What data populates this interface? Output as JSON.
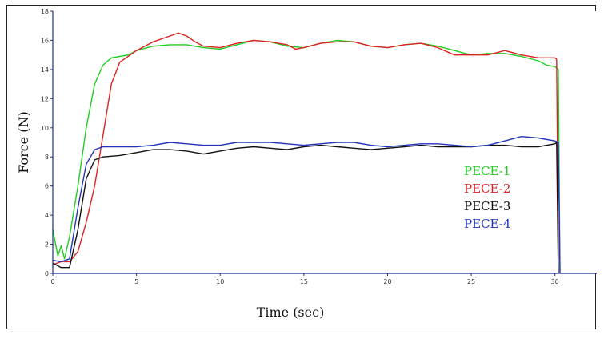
{
  "chart_data": {
    "type": "line",
    "xlabel": "Time (sec)",
    "ylabel": "Force (N)",
    "xlim": [
      0,
      32.5
    ],
    "ylim": [
      0,
      18
    ],
    "x_ticks": [
      "0",
      "5",
      "10",
      "15",
      "20",
      "25",
      "30"
    ],
    "y_ticks": [
      "0",
      "2",
      "4",
      "6",
      "8",
      "10",
      "12",
      "14",
      "16",
      "18"
    ],
    "grid": false,
    "legend_position": "right, inside plot",
    "series": [
      {
        "name": "PECE-1",
        "color": "#22cc22",
        "points": [
          [
            0,
            3.0
          ],
          [
            0.3,
            1.2
          ],
          [
            0.5,
            1.9
          ],
          [
            0.7,
            1.0
          ],
          [
            1.0,
            2.5
          ],
          [
            1.5,
            6.0
          ],
          [
            2.0,
            10.0
          ],
          [
            2.5,
            13.0
          ],
          [
            3.0,
            14.3
          ],
          [
            3.5,
            14.8
          ],
          [
            4.0,
            14.9
          ],
          [
            4.5,
            15.0
          ],
          [
            5.0,
            15.3
          ],
          [
            6.0,
            15.6
          ],
          [
            7.0,
            15.7
          ],
          [
            8.0,
            15.7
          ],
          [
            9.0,
            15.5
          ],
          [
            10.0,
            15.4
          ],
          [
            11.0,
            15.7
          ],
          [
            12.0,
            16.0
          ],
          [
            13.0,
            15.9
          ],
          [
            14.0,
            15.6
          ],
          [
            15.0,
            15.5
          ],
          [
            16.0,
            15.8
          ],
          [
            17.0,
            16.0
          ],
          [
            18.0,
            15.9
          ],
          [
            19.0,
            15.6
          ],
          [
            20.0,
            15.5
          ],
          [
            21.0,
            15.7
          ],
          [
            22.0,
            15.8
          ],
          [
            23.0,
            15.6
          ],
          [
            24.0,
            15.3
          ],
          [
            25.0,
            15.0
          ],
          [
            26.0,
            15.1
          ],
          [
            27.0,
            15.1
          ],
          [
            28.0,
            14.9
          ],
          [
            29.0,
            14.6
          ],
          [
            29.5,
            14.3
          ],
          [
            30.0,
            14.2
          ],
          [
            30.2,
            14.0
          ],
          [
            30.3,
            0
          ]
        ]
      },
      {
        "name": "PECE-2",
        "color": "#dd2222",
        "points": [
          [
            0,
            0.6
          ],
          [
            0.5,
            0.8
          ],
          [
            1.0,
            0.8
          ],
          [
            1.5,
            1.5
          ],
          [
            2.0,
            3.5
          ],
          [
            2.5,
            6.0
          ],
          [
            3.0,
            9.5
          ],
          [
            3.5,
            13.0
          ],
          [
            4.0,
            14.5
          ],
          [
            5.0,
            15.3
          ],
          [
            6.0,
            15.9
          ],
          [
            7.0,
            16.3
          ],
          [
            7.5,
            16.5
          ],
          [
            8.0,
            16.3
          ],
          [
            8.5,
            15.9
          ],
          [
            9.0,
            15.6
          ],
          [
            10.0,
            15.5
          ],
          [
            11.0,
            15.8
          ],
          [
            12.0,
            16.0
          ],
          [
            13.0,
            15.9
          ],
          [
            14.0,
            15.7
          ],
          [
            14.5,
            15.4
          ],
          [
            15.0,
            15.5
          ],
          [
            16.0,
            15.8
          ],
          [
            17.0,
            15.9
          ],
          [
            18.0,
            15.9
          ],
          [
            19.0,
            15.6
          ],
          [
            20.0,
            15.5
          ],
          [
            21.0,
            15.7
          ],
          [
            22.0,
            15.8
          ],
          [
            23.0,
            15.5
          ],
          [
            24.0,
            15.0
          ],
          [
            25.0,
            15.0
          ],
          [
            26.0,
            15.0
          ],
          [
            27.0,
            15.3
          ],
          [
            28.0,
            15.0
          ],
          [
            29.0,
            14.8
          ],
          [
            30.0,
            14.8
          ],
          [
            30.1,
            14.7
          ],
          [
            30.2,
            1.0
          ]
        ]
      },
      {
        "name": "PECE-3",
        "color": "#111111",
        "points": [
          [
            0,
            0.7
          ],
          [
            0.5,
            0.4
          ],
          [
            1.0,
            0.4
          ],
          [
            1.5,
            3.0
          ],
          [
            2.0,
            6.5
          ],
          [
            2.5,
            7.8
          ],
          [
            3.0,
            8.0
          ],
          [
            4.0,
            8.1
          ],
          [
            5.0,
            8.3
          ],
          [
            6.0,
            8.5
          ],
          [
            7.0,
            8.5
          ],
          [
            8.0,
            8.4
          ],
          [
            9.0,
            8.2
          ],
          [
            10.0,
            8.4
          ],
          [
            11.0,
            8.6
          ],
          [
            12.0,
            8.7
          ],
          [
            13.0,
            8.6
          ],
          [
            14.0,
            8.5
          ],
          [
            15.0,
            8.7
          ],
          [
            16.0,
            8.8
          ],
          [
            17.0,
            8.7
          ],
          [
            18.0,
            8.6
          ],
          [
            19.0,
            8.5
          ],
          [
            20.0,
            8.6
          ],
          [
            21.0,
            8.7
          ],
          [
            22.0,
            8.8
          ],
          [
            23.0,
            8.7
          ],
          [
            24.0,
            8.7
          ],
          [
            25.0,
            8.7
          ],
          [
            26.0,
            8.8
          ],
          [
            27.0,
            8.8
          ],
          [
            28.0,
            8.7
          ],
          [
            29.0,
            8.7
          ],
          [
            30.0,
            8.9
          ],
          [
            30.1,
            9.0
          ],
          [
            30.2,
            0
          ]
        ]
      },
      {
        "name": "PECE-4",
        "color": "#2233bb",
        "points": [
          [
            0,
            0.9
          ],
          [
            0.5,
            0.8
          ],
          [
            1.0,
            1.0
          ],
          [
            1.5,
            4.5
          ],
          [
            2.0,
            7.5
          ],
          [
            2.5,
            8.5
          ],
          [
            3.0,
            8.7
          ],
          [
            4.0,
            8.7
          ],
          [
            5.0,
            8.7
          ],
          [
            6.0,
            8.8
          ],
          [
            7.0,
            9.0
          ],
          [
            8.0,
            8.9
          ],
          [
            9.0,
            8.8
          ],
          [
            10.0,
            8.8
          ],
          [
            11.0,
            9.0
          ],
          [
            12.0,
            9.0
          ],
          [
            13.0,
            9.0
          ],
          [
            14.0,
            8.9
          ],
          [
            15.0,
            8.8
          ],
          [
            16.0,
            8.9
          ],
          [
            17.0,
            9.0
          ],
          [
            18.0,
            9.0
          ],
          [
            19.0,
            8.8
          ],
          [
            20.0,
            8.7
          ],
          [
            21.0,
            8.8
          ],
          [
            22.0,
            8.9
          ],
          [
            23.0,
            8.9
          ],
          [
            24.0,
            8.8
          ],
          [
            25.0,
            8.7
          ],
          [
            26.0,
            8.8
          ],
          [
            27.0,
            9.1
          ],
          [
            28.0,
            9.4
          ],
          [
            29.0,
            9.3
          ],
          [
            30.0,
            9.1
          ],
          [
            30.2,
            9.0
          ],
          [
            30.3,
            0
          ]
        ]
      }
    ]
  }
}
